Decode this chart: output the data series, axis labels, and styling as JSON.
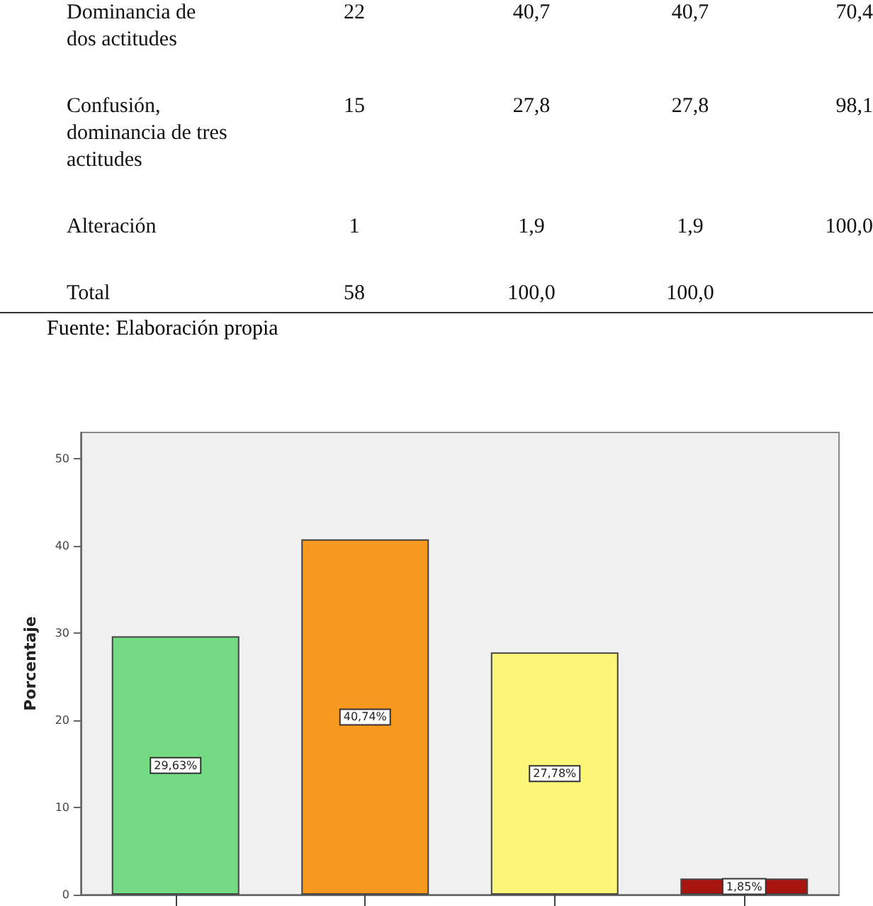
{
  "chart_data": {
    "type": "bar",
    "ylabel": "Porcentaje",
    "categories": [
      null,
      null,
      null,
      null
    ],
    "values": [
      29.63,
      40.74,
      27.78,
      1.85
    ],
    "colors": [
      "#74db84",
      "#f7991f",
      "#fbf677",
      "#a8140f"
    ],
    "value_labels": [
      "29,63%",
      "40,74%",
      "27,78%",
      "1,85%"
    ],
    "ylim": [
      0,
      53
    ],
    "yticks": [
      0,
      10,
      20,
      30,
      40,
      50
    ],
    "grid": false,
    "annotations": [
      "Dominancia de\ndos actitudes\t22\t40,7\t40,7\t70,4",
      "Confusión,\ndominancia de tres\nactitudes\t15\t27,8\t27,8\t98,1",
      "Alteración\t1\t1,9\t1,9\t100,0",
      "Total\t58\t100,0\t100,0\t",
      "Fuente: Elaboración propia"
    ]
  }
}
